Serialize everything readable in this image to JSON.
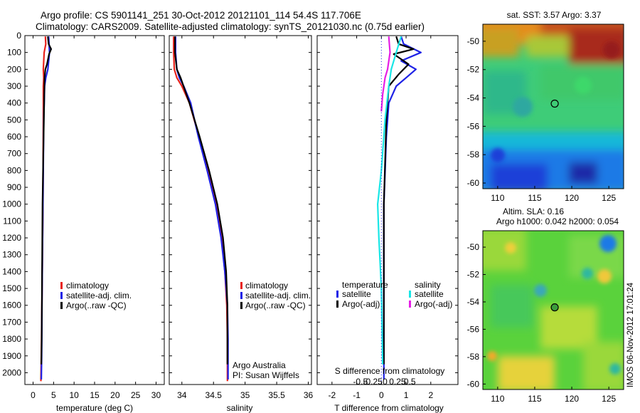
{
  "header": {
    "line1": "Argo profile: CS 5901141_251 30-Oct-2012 20121101_114 54.4S 117.706E",
    "line2": "Climatology: CARS2009. Satellite-adjusted climatology: synTS_20121030.nc (0.75d earlier)"
  },
  "footer_stamp": "IMOS 06-Nov-2012 17:01:24",
  "colors": {
    "climatology": "#e8221c",
    "satellite": "#1e22e6",
    "argo": "#000000",
    "sal_satellite": "#19e6e6",
    "sal_argo": "#e61ee6"
  },
  "chart_data": [
    {
      "id": "temperature",
      "type": "line",
      "xlabel": "temperature (deg C)",
      "ylabel": "",
      "xlim": [
        -2,
        32
      ],
      "ylim": [
        2070,
        0
      ],
      "xticks": [
        0,
        5,
        10,
        15,
        20,
        25,
        30
      ],
      "yticks": [
        0,
        100,
        200,
        300,
        400,
        500,
        600,
        700,
        800,
        900,
        1000,
        1100,
        1200,
        1300,
        1400,
        1500,
        1600,
        1700,
        1800,
        1900,
        2000
      ],
      "legend": [
        "climatology",
        "satellite-adj. clim.",
        "Argo(..raw -QC)"
      ],
      "legend_position": "lower-middle",
      "series": [
        {
          "name": "climatology",
          "color_key": "climatology",
          "x": [
            3.0,
            3.1,
            2.7,
            2.5,
            2.6,
            2.5,
            2.5,
            2.4,
            2.2,
            2.0,
            1.9
          ],
          "y": [
            5,
            50,
            100,
            200,
            250,
            300,
            500,
            1000,
            1500,
            1900,
            2050
          ]
        },
        {
          "name": "satellite-adj. clim.",
          "color_key": "satellite",
          "x": [
            3.8,
            3.9,
            4.0,
            3.6,
            3.1,
            2.8,
            2.6,
            2.4,
            2.2,
            2.1,
            2.0
          ],
          "y": [
            5,
            50,
            100,
            200,
            250,
            300,
            500,
            1000,
            1500,
            1900,
            2040
          ]
        },
        {
          "name": "Argo(..raw -QC)",
          "color_key": "argo",
          "x": [
            3.6,
            3.8,
            4.4,
            3.9,
            3.4,
            3.0,
            2.8,
            2.7,
            2.5,
            2.3,
            2.2,
            2.1,
            2.0
          ],
          "y": [
            5,
            50,
            80,
            110,
            170,
            200,
            250,
            400,
            700,
            1000,
            1400,
            1800,
            1950
          ]
        }
      ]
    },
    {
      "id": "salinity",
      "type": "line",
      "xlabel": "salinity",
      "ylabel": "",
      "xlim": [
        33.8,
        36.05
      ],
      "ylim": [
        2070,
        0
      ],
      "xticks": [
        34,
        34.5,
        35,
        35.5,
        36
      ],
      "legend": [
        "climatology",
        "satellite-adj. clim.",
        "Argo(..raw -QC)"
      ],
      "legend_position": "lower-right",
      "annotation": [
        "Argo Australia",
        "PI: Susan Wijffels"
      ],
      "series": [
        {
          "name": "climatology",
          "color_key": "climatology",
          "x": [
            33.87,
            33.87,
            33.88,
            33.92,
            34.0,
            34.12,
            34.27,
            34.42,
            34.55,
            34.63,
            34.68,
            34.71,
            34.72,
            34.72
          ],
          "y": [
            5,
            100,
            200,
            250,
            300,
            400,
            600,
            800,
            1000,
            1200,
            1400,
            1600,
            1800,
            2050
          ]
        },
        {
          "name": "satellite-adj. clim.",
          "color_key": "satellite",
          "x": [
            33.9,
            33.9,
            33.92,
            33.96,
            34.03,
            34.14,
            34.26,
            34.4,
            34.53,
            34.62,
            34.68,
            34.72,
            34.73,
            34.73
          ],
          "y": [
            5,
            100,
            200,
            250,
            300,
            400,
            600,
            800,
            1000,
            1200,
            1400,
            1600,
            1800,
            2040
          ]
        },
        {
          "name": "Argo(..raw -QC)",
          "color_key": "argo",
          "x": [
            33.89,
            33.89,
            33.92,
            33.98,
            34.12,
            34.28,
            34.43,
            34.56,
            34.65,
            34.7,
            34.72,
            34.72
          ],
          "y": [
            5,
            100,
            200,
            250,
            400,
            600,
            800,
            1000,
            1200,
            1400,
            1600,
            1950
          ]
        }
      ]
    },
    {
      "id": "differences",
      "type": "line",
      "xlabel": "T difference from climatology",
      "top_label": "S difference from climatology",
      "xlim": [
        -2.6,
        3.1
      ],
      "ylim": [
        2070,
        0
      ],
      "xticks": [
        -2,
        -1,
        0,
        1,
        2
      ],
      "top_ticks": [
        "-0.5",
        "-0.25",
        "0",
        "0.25",
        "0.5"
      ],
      "legend_titles": [
        "temperature",
        "salinity"
      ],
      "legend": [
        {
          "group": "temperature",
          "label": "satellite",
          "color_key": "satellite"
        },
        {
          "group": "temperature",
          "label": "Argo(-adj)",
          "color_key": "argo"
        },
        {
          "group": "salinity",
          "label": "satellite",
          "color_key": "sal_satellite"
        },
        {
          "group": "salinity",
          "label": "Argo(-adj)",
          "color_key": "sal_argo"
        }
      ],
      "series": [
        {
          "name": "temperature satellite",
          "color_key": "satellite",
          "x": [
            0.8,
            0.9,
            1.6,
            0.8,
            1.4,
            1.0,
            0.6,
            0.3,
            0.2,
            0.1,
            0.1,
            0.1
          ],
          "y": [
            5,
            50,
            100,
            150,
            200,
            250,
            300,
            400,
            600,
            1000,
            1500,
            2040
          ]
        },
        {
          "name": "temperature Argo(-adj)",
          "color_key": "argo",
          "x": [
            0.6,
            0.7,
            1.3,
            0.5,
            1.1,
            0.7,
            0.3,
            0.2,
            0.1,
            0.1,
            0.1
          ],
          "y": [
            5,
            50,
            80,
            110,
            170,
            230,
            300,
            500,
            1000,
            1500,
            1950
          ]
        },
        {
          "name": "salinity satellite",
          "color_key": "sal_satellite",
          "x": [
            0.8,
            0.6,
            0.4,
            0.3,
            0.15,
            0.0,
            -0.15,
            -0.1,
            0.0,
            0.05
          ],
          "y": [
            5,
            100,
            200,
            300,
            500,
            800,
            1000,
            1200,
            1500,
            1950
          ]
        },
        {
          "name": "salinity Argo(-adj)",
          "color_key": "sal_argo",
          "x": [
            0.3,
            0.35,
            0.25,
            0.15,
            0.05,
            0.0
          ],
          "y": [
            5,
            100,
            200,
            250,
            350,
            450
          ]
        }
      ]
    },
    {
      "id": "sst_map",
      "type": "heatmap",
      "title": "sat. SST: 3.57  Argo: 3.37",
      "xlim": [
        108,
        127
      ],
      "ylim": [
        -60.4,
        -48.8
      ],
      "xticks": [
        110,
        115,
        120,
        125
      ],
      "yticks": [
        -50,
        -52,
        -54,
        -56,
        -58,
        -60
      ],
      "profile_marker": {
        "lon": 117.7,
        "lat": -54.4
      }
    },
    {
      "id": "sla_map",
      "type": "heatmap",
      "title": "Altim. SLA: 0.16",
      "subtitle": "Argo h1000: 0.042 h2000: 0.054",
      "xlim": [
        108,
        127
      ],
      "ylim": [
        -60.4,
        -48.8
      ],
      "xticks": [
        110,
        115,
        120,
        125
      ],
      "yticks": [
        -50,
        -52,
        -54,
        -56,
        -58,
        -60
      ],
      "profile_marker": {
        "lon": 117.7,
        "lat": -54.4
      }
    }
  ]
}
